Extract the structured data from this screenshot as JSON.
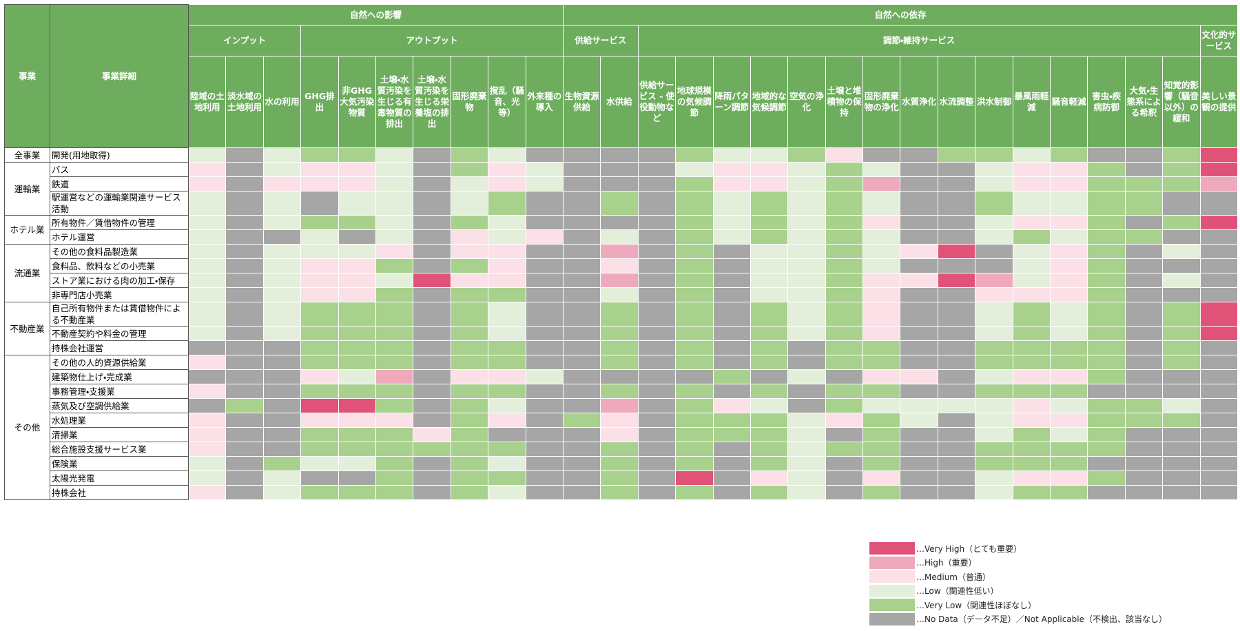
{
  "header": {
    "row_header": "事業",
    "detail_header": "事業詳細",
    "groups": [
      {
        "label": "自然への影響",
        "subgroups": [
          {
            "label": "インプット",
            "columns": [
              "陸域の土地利用",
              "淡水域の土地利用",
              "水の利用"
            ]
          },
          {
            "label": "アウトプット",
            "columns": [
              "GHG排出",
              "非GHG大気汚染物質",
              "土壌・水質汚染を生じる有毒物質の排出",
              "土壌・水質汚染を生じる栄養塩の排出",
              "固形廃棄物",
              "撹乱（騒音、光等）",
              "外来種の導入"
            ]
          }
        ]
      },
      {
        "label": "自然への依存",
        "subgroups": [
          {
            "label": "供給サービス",
            "columns": [
              "生物資源供給",
              "水供給"
            ]
          },
          {
            "label": "調節・維持サービス",
            "columns": [
              "供給サービス - 使役動物など",
              "地球規模の気候調節",
              "降雨パターン調節",
              "地域的な気候調節",
              "空気の浄化",
              "土壌と堆積物の保持",
              "固形廃棄物の浄化",
              "水質浄化",
              "水流調整",
              "洪水制御",
              "暴風雨軽減",
              "騒音軽減",
              "害虫・疾病防御",
              "大気・生態系による希釈",
              "知覚的影響（騒音以外）の緩和"
            ]
          },
          {
            "label": "文化的サービス",
            "columns": [
              "美しい景観の提供"
            ]
          }
        ]
      }
    ]
  },
  "sections": [
    {
      "label": "全事業",
      "rows": [
        {
          "label": "開発(用地取得)",
          "cells": [
            3,
            5,
            3,
            4,
            4,
            3,
            5,
            4,
            3,
            5,
            5,
            5,
            5,
            4,
            3,
            3,
            4,
            2,
            5,
            5,
            4,
            4,
            3,
            4,
            5,
            5,
            4,
            0
          ]
        }
      ]
    },
    {
      "label": "運輸業",
      "rows": [
        {
          "label": "バス",
          "cells": [
            2,
            5,
            3,
            2,
            2,
            3,
            5,
            4,
            2,
            3,
            5,
            5,
            5,
            3,
            2,
            2,
            3,
            4,
            3,
            5,
            5,
            3,
            2,
            2,
            4,
            5,
            4,
            0
          ]
        },
        {
          "label": "鉄道",
          "cells": [
            2,
            5,
            2,
            2,
            2,
            3,
            5,
            3,
            2,
            3,
            5,
            5,
            5,
            4,
            2,
            2,
            3,
            4,
            1,
            5,
            5,
            3,
            2,
            2,
            4,
            4,
            4,
            1
          ]
        },
        {
          "label": "駅運営などの運輸業関連サービス活動",
          "cells": [
            3,
            5,
            3,
            5,
            3,
            3,
            5,
            3,
            4,
            5,
            5,
            4,
            5,
            4,
            3,
            4,
            3,
            4,
            3,
            5,
            5,
            4,
            3,
            3,
            4,
            4,
            5,
            5
          ]
        }
      ]
    },
    {
      "label": "ホテル業",
      "rows": [
        {
          "label": "所有物件／賃借物件の管理",
          "cells": [
            3,
            5,
            3,
            4,
            4,
            3,
            5,
            4,
            3,
            5,
            5,
            5,
            5,
            4,
            3,
            4,
            3,
            4,
            2,
            5,
            5,
            3,
            2,
            2,
            4,
            5,
            4,
            0
          ]
        },
        {
          "label": "ホテル運営",
          "cells": [
            3,
            5,
            5,
            3,
            5,
            3,
            5,
            2,
            3,
            2,
            5,
            3,
            5,
            4,
            3,
            4,
            3,
            4,
            3,
            5,
            5,
            3,
            4,
            3,
            4,
            4,
            5,
            5
          ]
        }
      ]
    },
    {
      "label": "流通業",
      "rows": [
        {
          "label": "その他の食料品製造業",
          "cells": [
            3,
            5,
            3,
            3,
            3,
            2,
            5,
            2,
            2,
            5,
            5,
            1,
            5,
            4,
            5,
            3,
            3,
            4,
            3,
            2,
            0,
            5,
            3,
            2,
            4,
            5,
            3,
            5
          ]
        },
        {
          "label": "食料品、飲料などの小売業",
          "cells": [
            3,
            5,
            3,
            2,
            2,
            4,
            5,
            4,
            2,
            5,
            5,
            2,
            5,
            4,
            5,
            3,
            3,
            4,
            3,
            5,
            5,
            5,
            3,
            2,
            4,
            5,
            5,
            5
          ]
        },
        {
          "label": "ストア業における肉の加工・保存",
          "cells": [
            3,
            5,
            3,
            2,
            2,
            3,
            0,
            2,
            2,
            5,
            5,
            1,
            5,
            4,
            5,
            3,
            3,
            4,
            2,
            2,
            0,
            1,
            3,
            2,
            4,
            5,
            3,
            5
          ]
        },
        {
          "label": "非専門店小売業",
          "cells": [
            3,
            5,
            3,
            2,
            2,
            4,
            5,
            4,
            4,
            5,
            5,
            3,
            5,
            4,
            5,
            3,
            3,
            4,
            2,
            5,
            5,
            2,
            2,
            2,
            4,
            5,
            5,
            5
          ]
        }
      ]
    },
    {
      "label": "不動産業",
      "rows": [
        {
          "label": "自己所有物件または賃借物件による不動産業",
          "cells": [
            3,
            5,
            3,
            4,
            4,
            4,
            5,
            4,
            3,
            5,
            5,
            4,
            5,
            4,
            5,
            4,
            3,
            4,
            2,
            5,
            5,
            3,
            4,
            3,
            4,
            5,
            4,
            0
          ]
        },
        {
          "label": "不動産契約や料金の管理",
          "cells": [
            3,
            5,
            3,
            4,
            4,
            4,
            5,
            4,
            3,
            5,
            5,
            4,
            5,
            4,
            5,
            4,
            3,
            4,
            2,
            5,
            5,
            3,
            4,
            3,
            4,
            5,
            4,
            0
          ]
        },
        {
          "label": "持株会社運営",
          "cells": [
            5,
            5,
            5,
            4,
            4,
            4,
            5,
            4,
            4,
            5,
            5,
            4,
            5,
            4,
            5,
            4,
            5,
            4,
            4,
            5,
            5,
            4,
            4,
            4,
            4,
            5,
            4,
            5
          ]
        }
      ]
    },
    {
      "label": "その他",
      "rows": [
        {
          "label": "その他の人的資源供給業",
          "cells": [
            2,
            5,
            5,
            4,
            4,
            4,
            5,
            4,
            4,
            5,
            5,
            4,
            5,
            4,
            5,
            4,
            5,
            4,
            4,
            5,
            5,
            4,
            4,
            4,
            4,
            5,
            4,
            5
          ]
        },
        {
          "label": "建築物仕上げ・完成業",
          "cells": [
            5,
            5,
            5,
            2,
            3,
            1,
            5,
            2,
            2,
            3,
            5,
            5,
            5,
            5,
            4,
            5,
            3,
            5,
            2,
            2,
            5,
            3,
            2,
            2,
            4,
            5,
            5,
            5
          ]
        },
        {
          "label": "事務管理・支援業",
          "cells": [
            2,
            5,
            5,
            4,
            4,
            4,
            5,
            4,
            4,
            5,
            5,
            4,
            5,
            4,
            5,
            4,
            5,
            4,
            4,
            5,
            5,
            4,
            4,
            4,
            5,
            5,
            5,
            5
          ]
        },
        {
          "label": "蒸気及び空調供給業",
          "cells": [
            5,
            4,
            5,
            0,
            0,
            4,
            5,
            4,
            3,
            5,
            5,
            1,
            5,
            4,
            2,
            3,
            5,
            4,
            3,
            3,
            3,
            3,
            2,
            3,
            4,
            4,
            3,
            5
          ]
        },
        {
          "label": "水処理業",
          "cells": [
            2,
            5,
            5,
            2,
            2,
            2,
            5,
            4,
            2,
            5,
            4,
            2,
            5,
            4,
            4,
            4,
            3,
            2,
            4,
            3,
            5,
            3,
            2,
            2,
            4,
            4,
            4,
            5
          ]
        },
        {
          "label": "清掃業",
          "cells": [
            2,
            5,
            5,
            4,
            4,
            4,
            2,
            4,
            5,
            5,
            5,
            2,
            5,
            4,
            4,
            4,
            3,
            5,
            4,
            5,
            5,
            3,
            4,
            3,
            4,
            5,
            5,
            5
          ]
        },
        {
          "label": "総合施設支援サービス業",
          "cells": [
            2,
            5,
            5,
            4,
            4,
            4,
            4,
            4,
            4,
            5,
            5,
            4,
            5,
            4,
            5,
            4,
            3,
            4,
            4,
            5,
            5,
            4,
            4,
            4,
            4,
            5,
            5,
            5
          ]
        },
        {
          "label": "保険業",
          "cells": [
            3,
            5,
            4,
            3,
            3,
            4,
            5,
            4,
            3,
            5,
            5,
            4,
            5,
            4,
            5,
            4,
            3,
            5,
            4,
            5,
            5,
            4,
            4,
            4,
            5,
            5,
            5,
            5
          ]
        },
        {
          "label": "太陽光発電",
          "cells": [
            3,
            5,
            3,
            5,
            5,
            4,
            5,
            4,
            4,
            5,
            5,
            4,
            5,
            0,
            5,
            2,
            3,
            5,
            2,
            5,
            5,
            3,
            2,
            2,
            4,
            5,
            5,
            5
          ]
        },
        {
          "label": "持株会社",
          "cells": [
            2,
            5,
            3,
            4,
            4,
            4,
            5,
            4,
            3,
            5,
            5,
            4,
            5,
            4,
            5,
            4,
            3,
            5,
            4,
            5,
            5,
            3,
            4,
            4,
            5,
            5,
            5,
            5
          ]
        }
      ]
    }
  ],
  "legend": [
    {
      "label": "…Very High（とても重要）",
      "color": "#e05278"
    },
    {
      "label": "…High（重要）",
      "color": "#efa9bd"
    },
    {
      "label": "…Medium（普通）",
      "color": "#fbe1e7"
    },
    {
      "label": "…Low（関連性低い）",
      "color": "#e3efdb"
    },
    {
      "label": "…Very Low（関連性ほぼなし）",
      "color": "#a9d18e"
    },
    {
      "label": "…No Data（データ不足）／Not Applicable（不検出、該当なし）",
      "color": "#a6a6a6"
    }
  ]
}
